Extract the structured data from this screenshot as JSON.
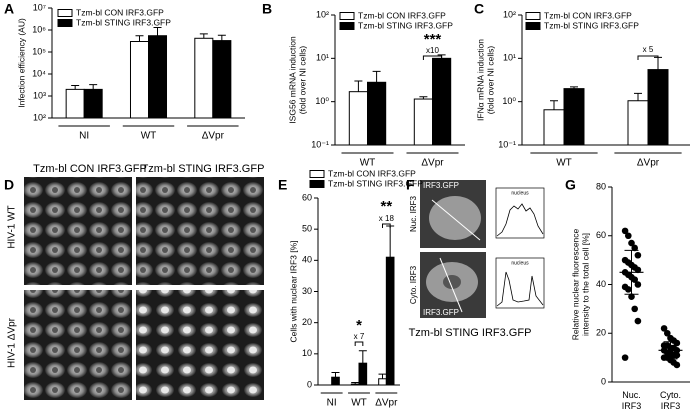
{
  "chart_data": [
    {
      "panel": "A",
      "type": "bar",
      "log": true,
      "ylabel": [
        "Infection efficiency (AU)"
      ],
      "categories": [
        "NI",
        "WT",
        "ΔVpr"
      ],
      "series": [
        {
          "name": "Tzm-bl CON IRF3.GFP",
          "color": "#ffffff",
          "values": [
            2000,
            300000,
            420000
          ],
          "errors": [
            1000,
            250000,
            250000
          ]
        },
        {
          "name": "Tzm-bl STING IRF3.GFP",
          "color": "#000000",
          "values": [
            2000,
            550000,
            330000
          ],
          "errors": [
            1300,
            750000,
            250000
          ]
        }
      ],
      "ylim": [
        100,
        10000000
      ],
      "yticks": [
        {
          "value": 100,
          "label": "10²"
        },
        {
          "value": 1000,
          "label": "10³"
        },
        {
          "value": 10000,
          "label": "10⁴"
        },
        {
          "value": 100000,
          "label": "10⁵"
        },
        {
          "value": 1000000,
          "label": "10⁶"
        },
        {
          "value": 10000000,
          "label": "10⁷"
        }
      ],
      "annotations": []
    },
    {
      "panel": "B",
      "type": "bar",
      "log": true,
      "ylabel": [
        "ISG56 mRNA induction",
        "(fold over NI cells)"
      ],
      "categories": [
        "WT",
        "ΔVpr"
      ],
      "series": [
        {
          "name": "Tzm-bl CON IRF3.GFP",
          "color": "#ffffff",
          "values": [
            1.7,
            1.15
          ],
          "errors": [
            1.3,
            0.15
          ]
        },
        {
          "name": "Tzm-bl STING IRF3.GFP",
          "color": "#000000",
          "values": [
            2.8,
            10
          ],
          "errors": [
            2.2,
            2
          ]
        }
      ],
      "ylim": [
        0.1,
        100
      ],
      "yticks": [
        {
          "value": 0.1,
          "label": "10⁻¹"
        },
        {
          "value": 1,
          "label": "10⁰"
        },
        {
          "value": 10,
          "label": "10¹"
        },
        {
          "value": 100,
          "label": "10²"
        }
      ],
      "annotations": [
        "***",
        "x10"
      ]
    },
    {
      "panel": "C",
      "type": "bar",
      "log": true,
      "ylabel": [
        "IFNα mRNA induction",
        "(fold over NI cells)"
      ],
      "categories": [
        "WT",
        "ΔVpr"
      ],
      "series": [
        {
          "name": "Tzm-bl CON IRF3.GFP",
          "color": "#ffffff",
          "values": [
            0.65,
            1.05
          ],
          "errors": [
            0.4,
            0.5
          ]
        },
        {
          "name": "Tzm-bl STING IRF3.GFP",
          "color": "#000000",
          "values": [
            2.0,
            5.5
          ],
          "errors": [
            0.2,
            5
          ]
        }
      ],
      "ylim": [
        0.1,
        100
      ],
      "yticks": [
        {
          "value": 0.1,
          "label": "10⁻¹"
        },
        {
          "value": 1,
          "label": "10⁰"
        },
        {
          "value": 10,
          "label": "10¹"
        },
        {
          "value": 100,
          "label": "10²"
        }
      ],
      "annotations": [
        "x 5"
      ]
    },
    {
      "panel": "E",
      "type": "bar",
      "log": false,
      "ylabel": [
        "Cells with nuclear IRF3 [%]"
      ],
      "categories": [
        "NI",
        "WT",
        "ΔVpr"
      ],
      "series": [
        {
          "name": "Tzm-bl CON IRF3.GFP",
          "color": "#ffffff",
          "values": [
            0,
            0.3,
            2
          ],
          "errors": [
            0,
            0.5,
            1.5
          ]
        },
        {
          "name": "Tzm-bl STING IRF3.GFP",
          "color": "#000000",
          "values": [
            2.5,
            7,
            41
          ],
          "errors": [
            1.5,
            4,
            10
          ]
        }
      ],
      "ylim": [
        0,
        60
      ],
      "yticks": [
        0,
        10,
        20,
        30,
        40,
        50,
        60
      ],
      "annotations": [
        "*",
        "x 7",
        "**",
        "x 18"
      ]
    },
    {
      "panel": "G",
      "type": "dot",
      "ylabel": [
        "Relative nuclear fluorescence",
        "intensity to the total cell [%]"
      ],
      "categories": [
        "Nuc.\nIRF3",
        "Cyto.\nIRF3"
      ],
      "points": [
        [
          62,
          60,
          57,
          55,
          52,
          50,
          49,
          48,
          47,
          46,
          45,
          44,
          43,
          42,
          40,
          39,
          38,
          35,
          30,
          25,
          10
        ],
        [
          22,
          20,
          18,
          17,
          16,
          15,
          15,
          14,
          14,
          13,
          13,
          12,
          12,
          11,
          11,
          10,
          10,
          9,
          8,
          7
        ]
      ],
      "means": [
        45,
        13
      ],
      "sd": [
        9,
        3.5
      ],
      "color": "#000000",
      "ylim": [
        0,
        80
      ],
      "yticks": [
        0,
        20,
        40,
        60,
        80
      ]
    }
  ],
  "micrographs": {
    "D": {
      "panel": "D",
      "columns": [
        "Tzm-bl CON IRF3.GFP",
        "Tzm-bl STING IRF3.GFP"
      ],
      "rows": [
        "HIV-1 WT",
        "HIV-1 ΔVpr"
      ]
    },
    "F": {
      "panel": "F",
      "rows": [
        "Nuc. IRF3",
        "Cyto. IRF3"
      ],
      "image_label": "IRF3.GFP",
      "profile_label": "nucleus",
      "caption": "Tzm-bl STING IRF3.GFP"
    }
  }
}
